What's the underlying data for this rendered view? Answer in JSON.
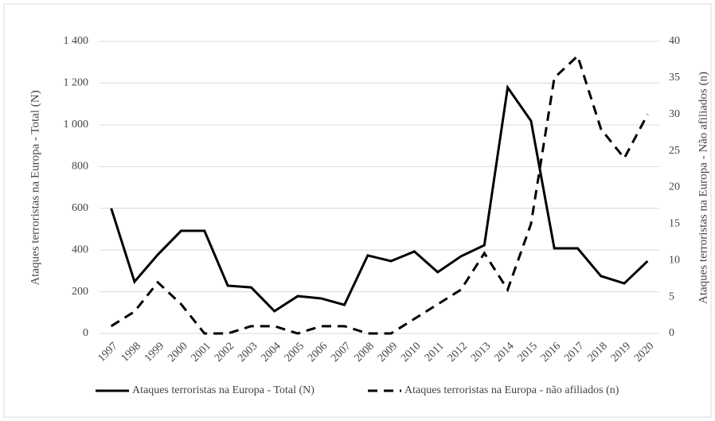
{
  "chart_data": {
    "type": "line",
    "ylabel": "Ataques terroristas na Europa - Total (N)",
    "y2label": "Ataques terroristas na Europa - Não afiliados (n)",
    "categories": [
      "1997",
      "1998",
      "1999",
      "2000",
      "2001",
      "2002",
      "2003",
      "2004",
      "2005",
      "2006",
      "2007",
      "2008",
      "2009",
      "2010",
      "2011",
      "2012",
      "2013",
      "2014",
      "2015",
      "2016",
      "2017",
      "2018",
      "2019",
      "2020"
    ],
    "series": [
      {
        "name": "Ataques terroristas na Europa - Total (N)",
        "color": "#000000",
        "style": "solid",
        "values": [
          600,
          248,
          378,
          492,
          492,
          229,
          221,
          107,
          179,
          168,
          137,
          374,
          347,
          393,
          294,
          370,
          423,
          1179,
          1019,
          408,
          408,
          275,
          240,
          347
        ]
      },
      {
        "name": "Ataques terroristas na Europa - não afiliados (n)",
        "color": "#000000",
        "style": "dashed",
        "axis": "y2",
        "values": [
          1,
          3,
          7,
          4,
          0,
          0,
          1,
          1,
          0,
          1,
          1,
          0,
          0,
          2,
          4,
          6,
          11,
          6,
          15,
          35,
          38,
          28,
          24,
          30
        ]
      }
    ],
    "ylim": [
      0,
      1400
    ],
    "yticks": [
      0,
      200,
      400,
      600,
      800,
      {
        "value": 1000,
        "label": "1 000"
      },
      {
        "value": 1200,
        "label": "1 200"
      },
      {
        "value": 1400,
        "label": "1 400"
      }
    ],
    "y2lim": [
      0,
      40
    ],
    "y2ticks": [
      0,
      5,
      10,
      15,
      20,
      25,
      30,
      35,
      40
    ],
    "grid": true,
    "legend": "bottom"
  }
}
